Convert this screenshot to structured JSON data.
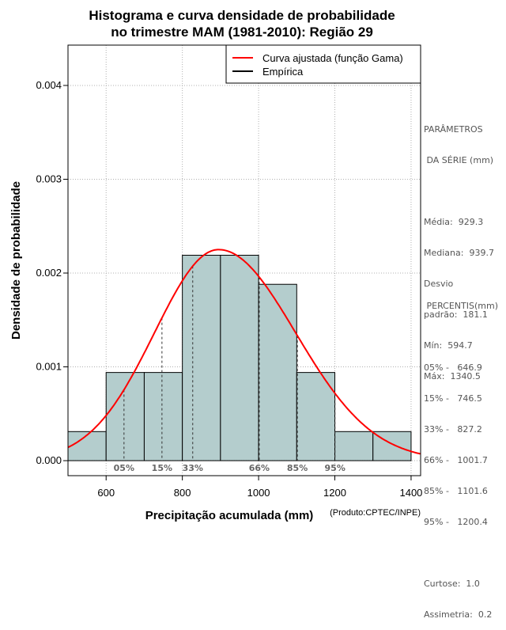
{
  "chart_data": {
    "type": "histogram",
    "title": [
      "Histograma e curva densidade de probabilidade",
      "no trimestre MAM (1981-2010): Região 29"
    ],
    "xlabel": "Precipitação acumulada (mm)",
    "credit": "(Produto:CPTEC/INPE)",
    "ylabel": "Densidade de probabilidade",
    "xlim": [
      500,
      1425
    ],
    "ylim": [
      -0.00016,
      0.00443
    ],
    "xticks": [
      600,
      800,
      1000,
      1200,
      1400
    ],
    "yticks": [
      0.0,
      0.001,
      0.002,
      0.003,
      0.004
    ],
    "ytick_labels": [
      "0.000",
      "0.001",
      "0.002",
      "0.003",
      "0.004"
    ],
    "grid": true,
    "bins": [
      {
        "from": 500,
        "to": 600,
        "density": 0.00031
      },
      {
        "from": 600,
        "to": 700,
        "density": 0.00094
      },
      {
        "from": 700,
        "to": 800,
        "density": 0.00094
      },
      {
        "from": 800,
        "to": 900,
        "density": 0.00219
      },
      {
        "from": 900,
        "to": 1000,
        "density": 0.00219
      },
      {
        "from": 1000,
        "to": 1100,
        "density": 0.00188
      },
      {
        "from": 1100,
        "to": 1200,
        "density": 0.00094
      },
      {
        "from": 1200,
        "to": 1300,
        "density": 0.00031
      },
      {
        "from": 1300,
        "to": 1400,
        "density": 0.00031
      }
    ],
    "gamma_curve": {
      "name": "Curva ajustada (função Gama)",
      "mode": 895,
      "peak_density": 0.00225,
      "sd_left": 168,
      "sd_right": 202,
      "color": "#ff0000"
    },
    "empirical_name": "Empírica",
    "percentile_markers": [
      {
        "label": "05%",
        "value": 646.9
      },
      {
        "label": "15%",
        "value": 746.5
      },
      {
        "label": "33%",
        "value": 827.2
      },
      {
        "label": "66%",
        "value": 1001.7
      },
      {
        "label": "85%",
        "value": 1101.6
      },
      {
        "label": "95%",
        "value": 1200.4
      }
    ],
    "bar_color": "#b4cdcd",
    "legend_position": "top-right"
  },
  "params": {
    "heading": [
      "PARÂMETROS",
      " DA SÉRIE (mm)"
    ],
    "lines": [
      "Média:  929.3",
      "Mediana:  939.7",
      "Desvio",
      "padrão:  181.1",
      "Mín:  594.7",
      "Máx:  1340.5"
    ]
  },
  "percentis": {
    "heading": " PERCENTIS(mm)",
    "lines": [
      "05% -   646.9",
      "15% -   746.5",
      "33% -   827.2",
      "66% -   1001.7",
      "85% -   1101.6",
      "95% -   1200.4"
    ],
    "extra": [
      "Curtose:  1.0",
      "Assimetria:  0.2"
    ]
  }
}
